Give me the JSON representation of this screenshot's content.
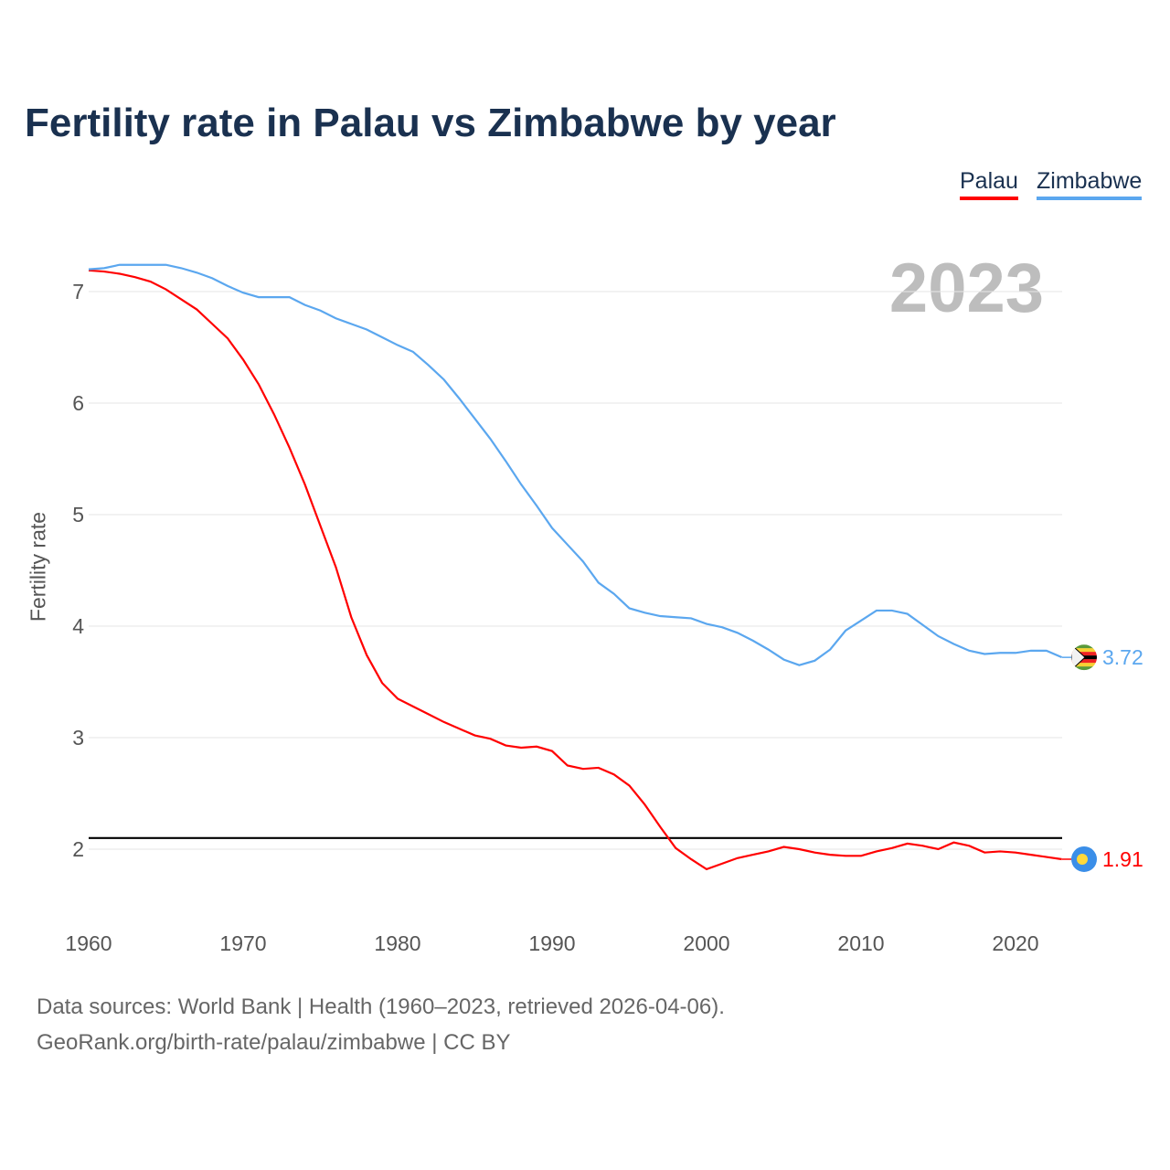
{
  "title": "Fertility rate in Palau vs Zimbabwe by year",
  "year_label": "2023",
  "source_line1": "Data sources: World Bank | Health (1960–2023, retrieved 2026-04-06).",
  "source_line2": "GeoRank.org/birth-rate/palau/zimbabwe | CC BY",
  "chart_data": {
    "type": "line",
    "title": "Fertility rate in Palau vs Zimbabwe by year",
    "xlabel": "",
    "ylabel": "Fertility rate",
    "xlim": [
      1960,
      2023
    ],
    "ylim": [
      1.5,
      7.3
    ],
    "x_ticks": [
      1960,
      1970,
      1980,
      1990,
      2000,
      2010,
      2020
    ],
    "y_ticks": [
      2,
      3,
      4,
      5,
      6,
      7
    ],
    "grid": true,
    "legend_position": "top-right",
    "reference_line": 2.1,
    "x_start": 1960,
    "series": [
      {
        "name": "Palau",
        "color": "#ff0000",
        "end_label": "1.91",
        "flag": "palau-flag",
        "values": [
          7.19,
          7.18,
          7.16,
          7.13,
          7.09,
          7.02,
          6.93,
          6.84,
          6.71,
          6.58,
          6.39,
          6.17,
          5.9,
          5.6,
          5.27,
          4.9,
          4.53,
          4.08,
          3.74,
          3.49,
          3.35,
          3.28,
          3.21,
          3.14,
          3.08,
          3.02,
          2.99,
          2.93,
          2.91,
          2.92,
          2.88,
          2.75,
          2.72,
          2.73,
          2.67,
          2.57,
          2.4,
          2.2,
          2.01,
          1.91,
          1.82,
          1.87,
          1.92,
          1.95,
          1.98,
          2.02,
          2.0,
          1.97,
          1.95,
          1.94,
          1.94,
          1.98,
          2.01,
          2.05,
          2.03,
          2.0,
          2.06,
          2.03,
          1.97,
          1.98,
          1.97,
          1.95,
          1.93,
          1.91
        ]
      },
      {
        "name": "Zimbabwe",
        "color": "#5ba7ef",
        "end_label": "3.72",
        "flag": "zimbabwe-flag",
        "values": [
          7.2,
          7.21,
          7.24,
          7.24,
          7.24,
          7.24,
          7.21,
          7.17,
          7.12,
          7.05,
          6.99,
          6.95,
          6.95,
          6.95,
          6.88,
          6.83,
          6.76,
          6.71,
          6.66,
          6.59,
          6.52,
          6.46,
          6.34,
          6.21,
          6.04,
          5.86,
          5.68,
          5.48,
          5.27,
          5.08,
          4.88,
          4.73,
          4.58,
          4.39,
          4.29,
          4.16,
          4.12,
          4.09,
          4.08,
          4.07,
          4.02,
          3.99,
          3.94,
          3.87,
          3.79,
          3.7,
          3.65,
          3.69,
          3.79,
          3.96,
          4.05,
          4.14,
          4.14,
          4.11,
          4.01,
          3.91,
          3.84,
          3.78,
          3.75,
          3.76,
          3.76,
          3.78,
          3.78,
          3.72
        ]
      }
    ]
  }
}
